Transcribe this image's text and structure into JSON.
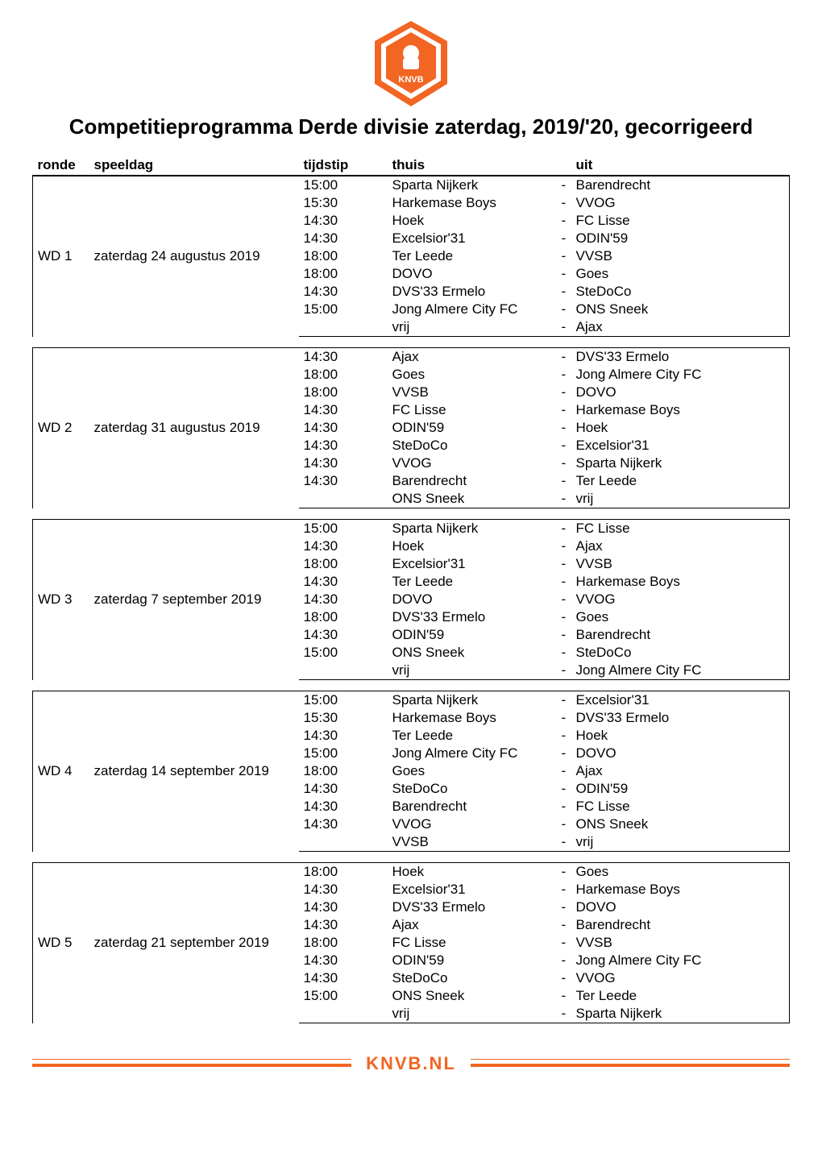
{
  "branding": {
    "logo_primary": "#f26522",
    "logo_secondary": "#ffffff",
    "logo_text": "KNVB",
    "footer_text": "KNVB.NL",
    "footer_color": "#f26522"
  },
  "title": "Competitieprogramma Derde divisie zaterdag, 2019/'20, gecorrigeerd",
  "headers": {
    "ronde": "ronde",
    "speeldag": "speeldag",
    "tijdstip": "tijdstip",
    "thuis": "thuis",
    "uit": "uit"
  },
  "rounds": [
    {
      "ronde": "WD 1",
      "speeldag": "zaterdag 24 augustus 2019",
      "fixtures": [
        {
          "tijdstip": "15:00",
          "thuis": "Sparta Nijkerk",
          "uit": "Barendrecht"
        },
        {
          "tijdstip": "15:30",
          "thuis": "Harkemase Boys",
          "uit": "VVOG"
        },
        {
          "tijdstip": "14:30",
          "thuis": "Hoek",
          "uit": "FC Lisse"
        },
        {
          "tijdstip": "14:30",
          "thuis": "Excelsior'31",
          "uit": "ODIN'59"
        },
        {
          "tijdstip": "18:00",
          "thuis": "Ter Leede",
          "uit": "VVSB"
        },
        {
          "tijdstip": "18:00",
          "thuis": "DOVO",
          "uit": "Goes"
        },
        {
          "tijdstip": "14:30",
          "thuis": "DVS'33 Ermelo",
          "uit": "SteDoCo"
        },
        {
          "tijdstip": "15:00",
          "thuis": "Jong Almere City FC",
          "uit": "ONS Sneek"
        },
        {
          "tijdstip": "",
          "thuis": "vrij",
          "uit": "Ajax"
        }
      ]
    },
    {
      "ronde": "WD 2",
      "speeldag": "zaterdag 31 augustus 2019",
      "fixtures": [
        {
          "tijdstip": "14:30",
          "thuis": "Ajax",
          "uit": "DVS'33 Ermelo"
        },
        {
          "tijdstip": "18:00",
          "thuis": "Goes",
          "uit": "Jong Almere City FC"
        },
        {
          "tijdstip": "18:00",
          "thuis": "VVSB",
          "uit": "DOVO"
        },
        {
          "tijdstip": "14:30",
          "thuis": "FC Lisse",
          "uit": "Harkemase Boys"
        },
        {
          "tijdstip": "14:30",
          "thuis": "ODIN'59",
          "uit": "Hoek"
        },
        {
          "tijdstip": "14:30",
          "thuis": "SteDoCo",
          "uit": "Excelsior'31"
        },
        {
          "tijdstip": "14:30",
          "thuis": "VVOG",
          "uit": "Sparta Nijkerk"
        },
        {
          "tijdstip": "14:30",
          "thuis": "Barendrecht",
          "uit": "Ter Leede"
        },
        {
          "tijdstip": "",
          "thuis": "ONS Sneek",
          "uit": "vrij"
        }
      ]
    },
    {
      "ronde": "WD 3",
      "speeldag": "zaterdag 7 september 2019",
      "fixtures": [
        {
          "tijdstip": "15:00",
          "thuis": "Sparta Nijkerk",
          "uit": "FC Lisse"
        },
        {
          "tijdstip": "14:30",
          "thuis": "Hoek",
          "uit": "Ajax"
        },
        {
          "tijdstip": "18:00",
          "thuis": "Excelsior'31",
          "uit": "VVSB"
        },
        {
          "tijdstip": "14:30",
          "thuis": "Ter Leede",
          "uit": "Harkemase Boys"
        },
        {
          "tijdstip": "14:30",
          "thuis": "DOVO",
          "uit": "VVOG"
        },
        {
          "tijdstip": "18:00",
          "thuis": "DVS'33 Ermelo",
          "uit": "Goes"
        },
        {
          "tijdstip": "14:30",
          "thuis": "ODIN'59",
          "uit": "Barendrecht"
        },
        {
          "tijdstip": "15:00",
          "thuis": "ONS Sneek",
          "uit": "SteDoCo"
        },
        {
          "tijdstip": "",
          "thuis": "vrij",
          "uit": "Jong Almere City FC"
        }
      ]
    },
    {
      "ronde": "WD 4",
      "speeldag": "zaterdag 14 september 2019",
      "fixtures": [
        {
          "tijdstip": "15:00",
          "thuis": "Sparta Nijkerk",
          "uit": "Excelsior'31"
        },
        {
          "tijdstip": "15:30",
          "thuis": "Harkemase Boys",
          "uit": "DVS'33 Ermelo"
        },
        {
          "tijdstip": "14:30",
          "thuis": "Ter Leede",
          "uit": "Hoek"
        },
        {
          "tijdstip": "15:00",
          "thuis": "Jong Almere City FC",
          "uit": "DOVO"
        },
        {
          "tijdstip": "18:00",
          "thuis": "Goes",
          "uit": "Ajax"
        },
        {
          "tijdstip": "14:30",
          "thuis": "SteDoCo",
          "uit": "ODIN'59"
        },
        {
          "tijdstip": "14:30",
          "thuis": "Barendrecht",
          "uit": "FC Lisse"
        },
        {
          "tijdstip": "14:30",
          "thuis": "VVOG",
          "uit": "ONS Sneek"
        },
        {
          "tijdstip": "",
          "thuis": "VVSB",
          "uit": "vrij"
        }
      ]
    },
    {
      "ronde": "WD 5",
      "speeldag": "zaterdag 21 september 2019",
      "fixtures": [
        {
          "tijdstip": "18:00",
          "thuis": "Hoek",
          "uit": "Goes"
        },
        {
          "tijdstip": "14:30",
          "thuis": "Excelsior'31",
          "uit": "Harkemase Boys"
        },
        {
          "tijdstip": "14:30",
          "thuis": "DVS'33 Ermelo",
          "uit": "DOVO"
        },
        {
          "tijdstip": "14:30",
          "thuis": "Ajax",
          "uit": "Barendrecht"
        },
        {
          "tijdstip": "18:00",
          "thuis": "FC Lisse",
          "uit": "VVSB"
        },
        {
          "tijdstip": "14:30",
          "thuis": "ODIN'59",
          "uit": "Jong Almere City FC"
        },
        {
          "tijdstip": "14:30",
          "thuis": "SteDoCo",
          "uit": "VVOG"
        },
        {
          "tijdstip": "15:00",
          "thuis": "ONS Sneek",
          "uit": "Ter Leede"
        },
        {
          "tijdstip": "",
          "thuis": "vrij",
          "uit": "Sparta Nijkerk"
        }
      ]
    }
  ]
}
